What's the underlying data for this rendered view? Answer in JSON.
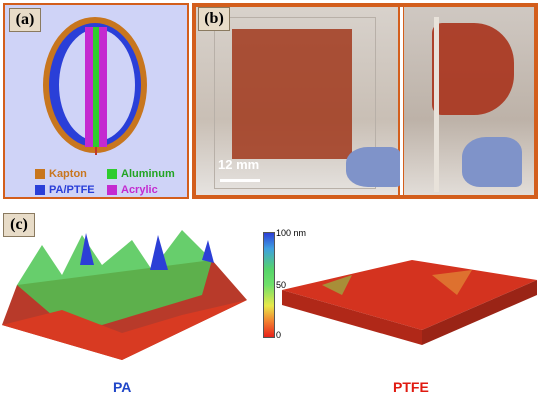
{
  "panels": {
    "a": {
      "label": "(a)",
      "legend": [
        {
          "name": "Kapton",
          "color": "#c8761e"
        },
        {
          "name": "Aluminum",
          "color": "#2ecc2e"
        },
        {
          "name": "PA/PTFE",
          "color": "#2a3fd8"
        },
        {
          "name": "Acrylic",
          "color": "#c42ad0"
        }
      ]
    },
    "b": {
      "label": "(b)",
      "scale_bar": "12 mm"
    },
    "c": {
      "label": "(c)",
      "colorbar": {
        "top": "100 nm",
        "mid": "50",
        "bottom": "0"
      },
      "left_caption": "PA",
      "right_caption": "PTFE",
      "left_caption_color": "#1f46c8",
      "right_caption_color": "#e01a10"
    }
  }
}
